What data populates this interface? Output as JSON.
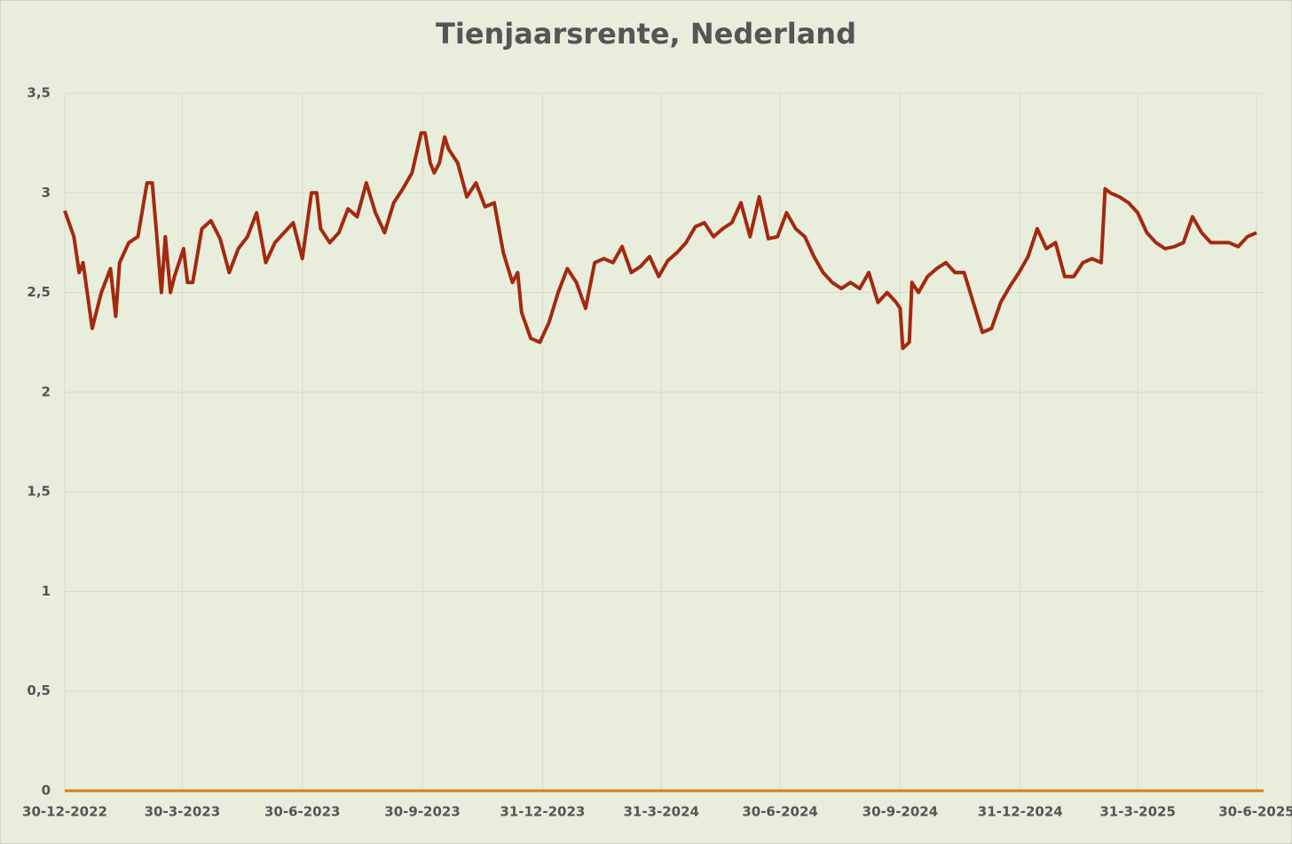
{
  "chart_data": {
    "type": "line",
    "title": "Tienjaarsrente, Nederland",
    "color": "#a3290f",
    "grid": true,
    "x": [
      "30-12-2022",
      "6-1-2023",
      "10-1-2023",
      "13-1-2023",
      "20-1-2023",
      "27-1-2023",
      "3-2-2023",
      "7-2-2023",
      "10-2-2023",
      "17-2-2023",
      "24-2-2023",
      "3-3-2023",
      "7-3-2023",
      "10-3-2023",
      "14-3-2023",
      "17-3-2023",
      "21-3-2023",
      "24-3-2023",
      "31-3-2023",
      "3-4-2023",
      "7-4-2023",
      "14-4-2023",
      "21-4-2023",
      "28-4-2023",
      "5-5-2023",
      "12-5-2023",
      "19-5-2023",
      "26-5-2023",
      "2-6-2023",
      "9-6-2023",
      "16-6-2023",
      "23-6-2023",
      "30-6-2023",
      "7-7-2023",
      "11-7-2023",
      "14-7-2023",
      "21-7-2023",
      "28-7-2023",
      "4-8-2023",
      "11-8-2023",
      "18-8-2023",
      "25-8-2023",
      "1-9-2023",
      "8-9-2023",
      "15-9-2023",
      "22-9-2023",
      "29-9-2023",
      "2-10-2023",
      "6-10-2023",
      "9-10-2023",
      "13-10-2023",
      "17-10-2023",
      "20-10-2023",
      "27-10-2023",
      "3-11-2023",
      "10-11-2023",
      "17-11-2023",
      "24-11-2023",
      "1-12-2023",
      "8-12-2023",
      "12-12-2023",
      "15-12-2023",
      "22-12-2023",
      "29-12-2023",
      "5-1-2024",
      "12-1-2024",
      "19-1-2024",
      "26-1-2024",
      "2-2-2024",
      "9-2-2024",
      "16-2-2024",
      "23-2-2024",
      "1-3-2024",
      "8-3-2024",
      "15-3-2024",
      "22-3-2024",
      "29-3-2024",
      "5-4-2024",
      "12-4-2024",
      "19-4-2024",
      "26-4-2024",
      "3-5-2024",
      "10-5-2024",
      "17-5-2024",
      "24-5-2024",
      "31-5-2024",
      "7-6-2024",
      "14-6-2024",
      "21-6-2024",
      "28-6-2024",
      "5-7-2024",
      "12-7-2024",
      "19-7-2024",
      "26-7-2024",
      "2-8-2024",
      "9-8-2024",
      "16-8-2024",
      "23-8-2024",
      "30-8-2024",
      "6-9-2024",
      "13-9-2024",
      "20-9-2024",
      "27-9-2024",
      "30-9-2024",
      "2-10-2024",
      "7-10-2024",
      "9-10-2024",
      "14-10-2024",
      "21-10-2024",
      "28-10-2024",
      "4-11-2024",
      "11-11-2024",
      "18-11-2024",
      "25-11-2024",
      "2-12-2024",
      "9-12-2024",
      "16-12-2024",
      "23-12-2024",
      "30-12-2024",
      "6-1-2025",
      "13-1-2025",
      "20-1-2025",
      "27-1-2025",
      "3-2-2025",
      "10-2-2025",
      "17-2-2025",
      "24-2-2025",
      "3-3-2025",
      "6-3-2025",
      "10-3-2025",
      "17-3-2025",
      "24-3-2025",
      "31-3-2025",
      "7-4-2025",
      "14-4-2025",
      "21-4-2025",
      "28-4-2025",
      "5-5-2025",
      "12-5-2025",
      "19-5-2025",
      "26-5-2025",
      "2-6-2025",
      "9-6-2025",
      "16-6-2025",
      "23-6-2025",
      "30-6-2025"
    ],
    "values": [
      2.91,
      2.78,
      2.6,
      2.65,
      2.32,
      2.5,
      2.62,
      2.38,
      2.65,
      2.75,
      2.78,
      3.05,
      3.05,
      2.82,
      2.5,
      2.78,
      2.5,
      2.58,
      2.72,
      2.55,
      2.55,
      2.82,
      2.86,
      2.77,
      2.6,
      2.72,
      2.78,
      2.9,
      2.65,
      2.75,
      2.8,
      2.85,
      2.67,
      3.0,
      3.0,
      2.82,
      2.75,
      2.8,
      2.92,
      2.88,
      3.05,
      2.9,
      2.8,
      2.95,
      3.02,
      3.1,
      3.3,
      3.3,
      3.15,
      3.1,
      3.15,
      3.28,
      3.22,
      3.15,
      2.98,
      3.05,
      2.93,
      2.95,
      2.7,
      2.55,
      2.6,
      2.4,
      2.27,
      2.25,
      2.35,
      2.5,
      2.62,
      2.55,
      2.42,
      2.65,
      2.67,
      2.65,
      2.73,
      2.6,
      2.63,
      2.68,
      2.58,
      2.66,
      2.7,
      2.75,
      2.83,
      2.85,
      2.78,
      2.82,
      2.85,
      2.95,
      2.78,
      2.98,
      2.77,
      2.78,
      2.9,
      2.82,
      2.78,
      2.68,
      2.6,
      2.55,
      2.52,
      2.55,
      2.52,
      2.6,
      2.45,
      2.5,
      2.45,
      2.42,
      2.22,
      2.25,
      2.55,
      2.5,
      2.58,
      2.62,
      2.65,
      2.6,
      2.6,
      2.45,
      2.3,
      2.32,
      2.45,
      2.53,
      2.6,
      2.68,
      2.82,
      2.72,
      2.75,
      2.58,
      2.58,
      2.65,
      2.67,
      2.65,
      3.02,
      3.0,
      2.98,
      2.95,
      2.9,
      2.8,
      2.75,
      2.72,
      2.73,
      2.75,
      2.88,
      2.8,
      2.75,
      2.75,
      2.75,
      2.73,
      2.78,
      2.8
    ],
    "xlim": [
      "30-12-2022",
      "30-6-2025"
    ],
    "xticks": [
      "30-12-2022",
      "30-3-2023",
      "30-6-2023",
      "30-9-2023",
      "31-12-2023",
      "31-3-2024",
      "30-6-2024",
      "30-9-2024",
      "31-12-2024",
      "31-3-2025",
      "30-6-2025"
    ],
    "ylim": [
      0,
      3.5
    ],
    "yticks": [
      0,
      {
        "value": 0.5,
        "label": "0,5"
      },
      1,
      {
        "value": 1.5,
        "label": "1,5"
      },
      2,
      {
        "value": 2.5,
        "label": "2,5"
      },
      3,
      {
        "value": 3.5,
        "label": "3,5"
      }
    ]
  }
}
